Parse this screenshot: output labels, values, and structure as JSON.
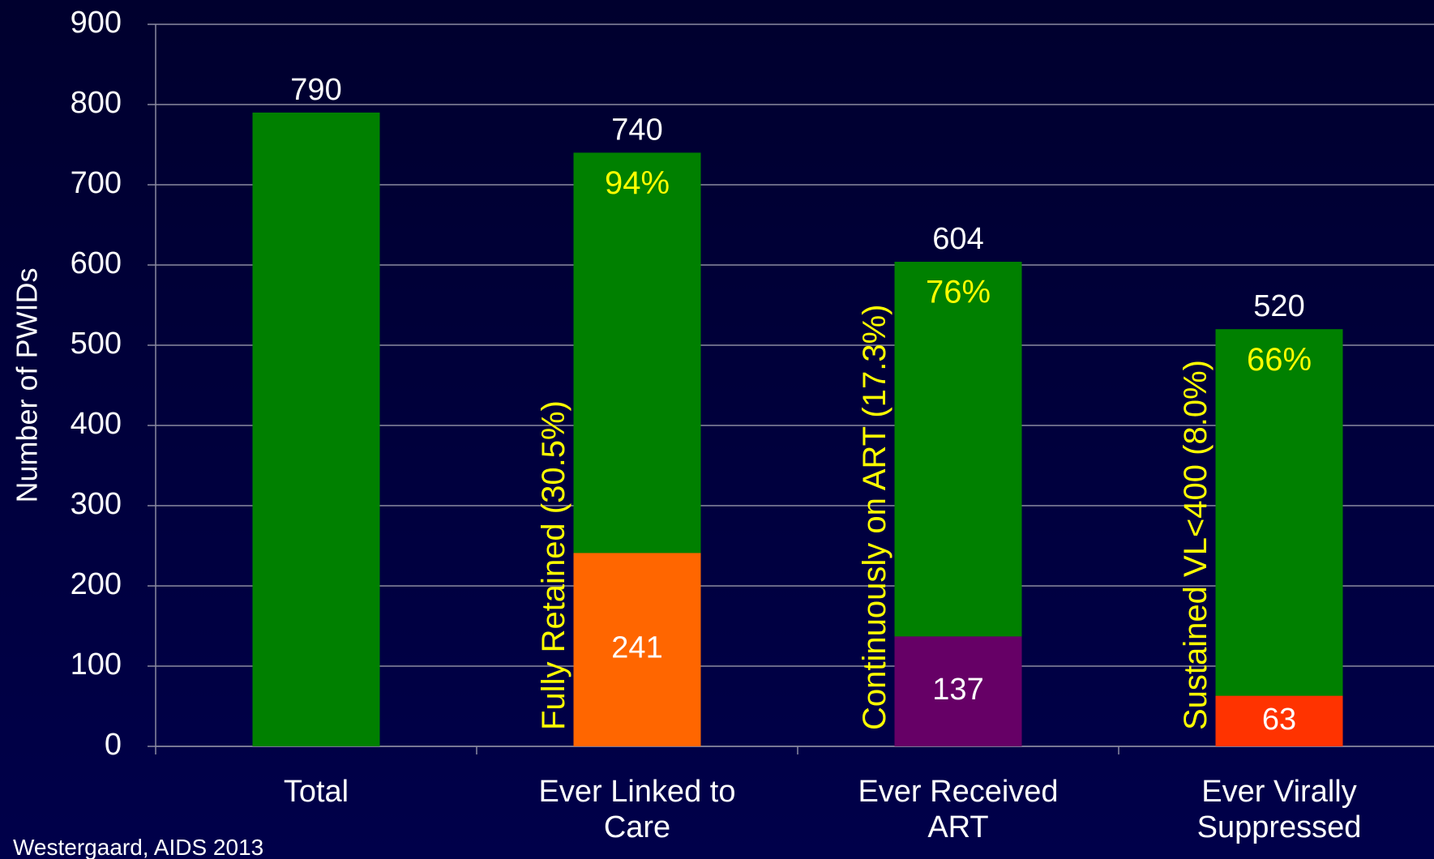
{
  "chart_data": {
    "type": "bar",
    "ylabel": "Number of PWIDs",
    "categories": [
      "Total",
      "Ever Linked to Care",
      "Ever Received ART",
      "Ever Virally Suppressed"
    ],
    "series": [
      {
        "color": "#008000",
        "values": [
          790,
          740,
          604,
          520
        ]
      },
      {
        "colors": [
          null,
          "#ff6600",
          "#660066",
          "#ff3300"
        ],
        "values": [
          null,
          241,
          137,
          63
        ],
        "overlay": true
      }
    ],
    "percent_labels": [
      null,
      "94%",
      "76%",
      "66%"
    ],
    "retention_labels": [
      null,
      "Fully Retained (30.5%)",
      "Continuously on ART (17.3%)",
      "Sustained VL<400 (8.0%)"
    ],
    "ylim": [
      0,
      900
    ],
    "yticks": [
      0,
      100,
      200,
      300,
      400,
      500,
      600,
      700,
      800,
      900
    ],
    "grid": true,
    "source": "Westergaard, AIDS 2013"
  }
}
